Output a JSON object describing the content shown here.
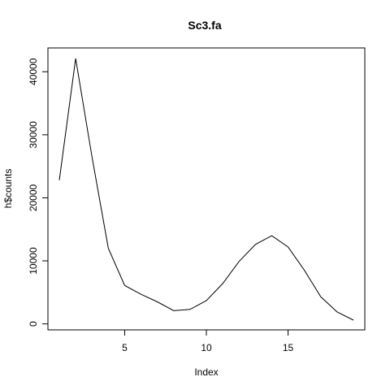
{
  "chart_data": {
    "type": "line",
    "title": "Sc3.fa",
    "xlabel": "Index",
    "ylabel": "h$counts",
    "xlim": [
      1,
      19
    ],
    "ylim": [
      600,
      42100
    ],
    "x_ticks": [
      5,
      10,
      15
    ],
    "y_ticks": [
      0,
      10000,
      20000,
      30000,
      40000
    ],
    "series": [
      {
        "name": "h$counts",
        "x": [
          1,
          2,
          3,
          4,
          5,
          6,
          7,
          8,
          9,
          10,
          11,
          12,
          13,
          14,
          15,
          16,
          17,
          18,
          19
        ],
        "values": [
          22800,
          42100,
          26500,
          12000,
          6100,
          4700,
          3500,
          2100,
          2300,
          3700,
          6400,
          9900,
          12600,
          14000,
          12200,
          8500,
          4300,
          1900,
          600
        ]
      }
    ],
    "grid": false
  }
}
